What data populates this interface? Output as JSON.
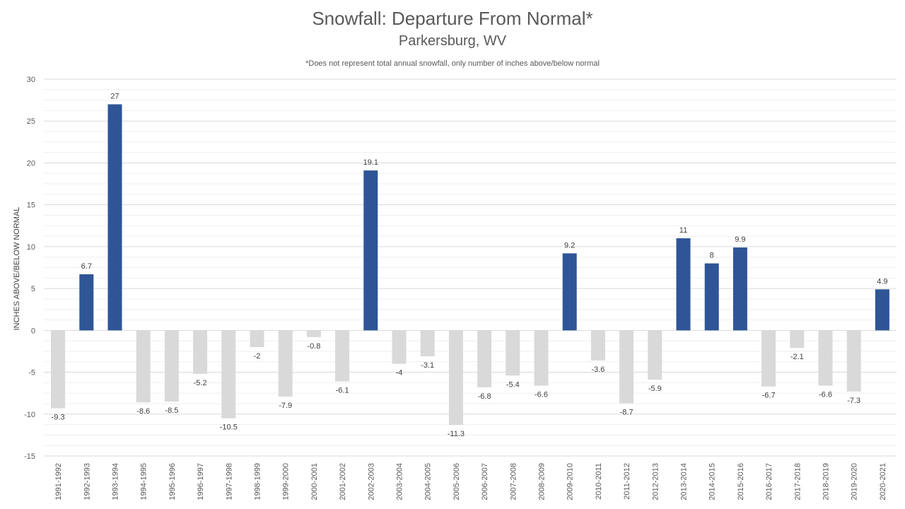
{
  "chart_data": {
    "type": "bar",
    "title": "Snowfall: Departure From Normal*",
    "subtitle": "Parkersburg,  WV",
    "note": "*Does not represent  total annual snowfall, only number of inches above/below normal",
    "ylabel": "INCHES ABOVE/BELOW NORMAL",
    "xlabel": "",
    "ylim": [
      -15,
      30
    ],
    "yticks": [
      30,
      25,
      20,
      15,
      10,
      5,
      0,
      -5,
      -10,
      -15
    ],
    "grid": true,
    "legend": "none",
    "colors": {
      "positive": "#2f5597",
      "negative": "#d9d9d9",
      "grid": "#e0e0e0"
    },
    "categories": [
      "1991-1992",
      "1992-1993",
      "1993-1994",
      "1994-1995",
      "1995-1996",
      "1996-1997",
      "1997-1998",
      "1998-1999",
      "1999-2000",
      "2000-2001",
      "2001-2002",
      "2002-2003",
      "2003-2004",
      "2004-2005",
      "2005-2006",
      "2006-2007",
      "2007-2008",
      "2008-2009",
      "2009-2010",
      "2010-2011",
      "2011-2012",
      "2012-2013",
      "2013-2014",
      "2014-2015",
      "2015-2016",
      "2016-2017",
      "2017-2018",
      "2018-2019",
      "2019-2020",
      "2020-2021"
    ],
    "values": [
      -9.3,
      6.7,
      27,
      -8.6,
      -8.5,
      -5.2,
      -10.5,
      -2,
      -7.9,
      -0.8,
      -6.1,
      19.1,
      -4,
      -3.1,
      -11.3,
      -6.8,
      -5.4,
      -6.6,
      9.2,
      -3.6,
      -8.7,
      -5.9,
      11,
      8,
      9.9,
      -6.7,
      -2.1,
      -6.6,
      -7.3,
      4.9
    ]
  }
}
